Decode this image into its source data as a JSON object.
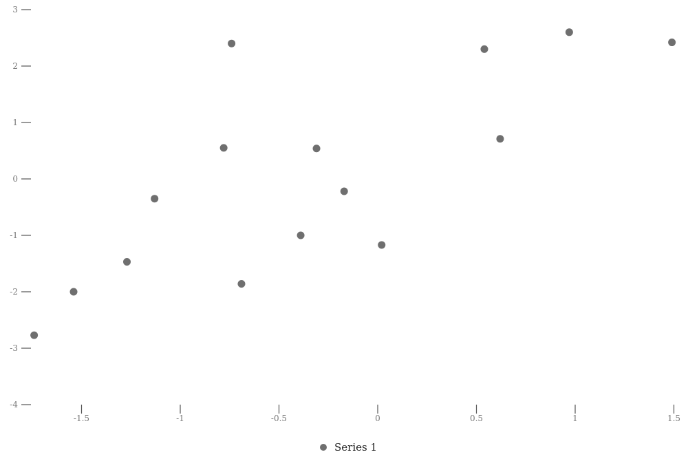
{
  "chart_data": {
    "type": "scatter",
    "title": "",
    "xlabel": "",
    "ylabel": "",
    "xlim": [
      -1.75,
      1.5
    ],
    "ylim": [
      -4,
      3
    ],
    "x_ticks": [
      -1.5,
      -1,
      -0.5,
      0,
      0.5,
      1,
      1.5
    ],
    "x_tick_labels": [
      "-1.5",
      "-1",
      "-0.5",
      "0",
      "0.5",
      "1",
      "1.5"
    ],
    "y_ticks": [
      3,
      2,
      1,
      0,
      -1,
      -2,
      -3,
      -4
    ],
    "y_tick_labels": [
      "3",
      "2",
      "1",
      "0",
      "-1",
      "-2",
      "-3",
      "-4"
    ],
    "grid": false,
    "legend_position": "bottom-center",
    "series": [
      {
        "name": "Series 1",
        "color": "#6f6f6f",
        "points": [
          {
            "x": -1.74,
            "y": -2.77
          },
          {
            "x": -1.54,
            "y": -2.0
          },
          {
            "x": -1.27,
            "y": -1.47
          },
          {
            "x": -1.13,
            "y": -0.35
          },
          {
            "x": -0.78,
            "y": 0.55
          },
          {
            "x": -0.74,
            "y": 2.4
          },
          {
            "x": -0.69,
            "y": -1.86
          },
          {
            "x": -0.39,
            "y": -1.0
          },
          {
            "x": -0.31,
            "y": 0.54
          },
          {
            "x": -0.17,
            "y": -0.22
          },
          {
            "x": 0.02,
            "y": -1.17
          },
          {
            "x": 0.54,
            "y": 2.3
          },
          {
            "x": 0.62,
            "y": 0.71
          },
          {
            "x": 0.97,
            "y": 2.6
          },
          {
            "x": 1.49,
            "y": 2.42
          }
        ]
      }
    ]
  }
}
